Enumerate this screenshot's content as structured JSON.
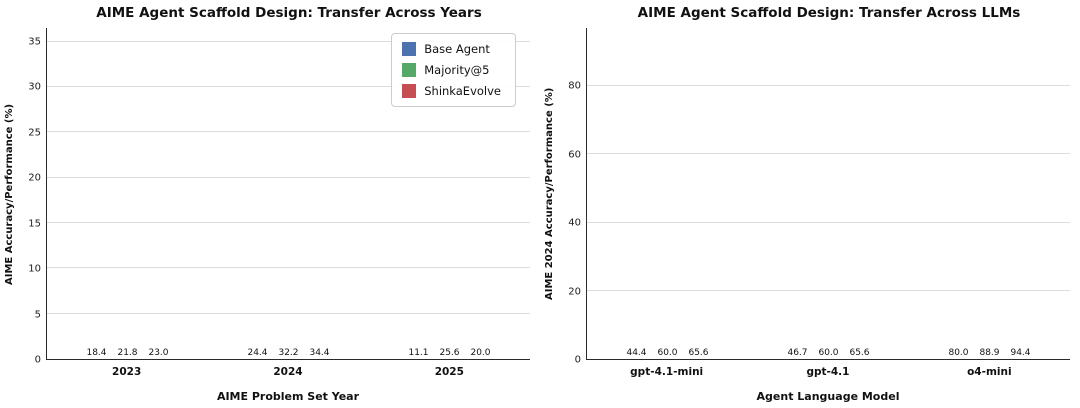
{
  "figure": {
    "background": "#ffffff",
    "grid_color": "#dcdcdc",
    "axis_color": "#2b2b2b"
  },
  "chart_data": [
    {
      "type": "bar",
      "title": "AIME Agent Scaffold Design: Transfer Across Years",
      "xlabel": "AIME Problem Set Year",
      "ylabel": "AIME Accuracy/Performance (%)",
      "categories": [
        "2023",
        "2024",
        "2025"
      ],
      "series": [
        {
          "name": "Base Agent",
          "color": "#4C72B0",
          "values": [
            18.4,
            24.4,
            11.1
          ]
        },
        {
          "name": "Majority@5",
          "color": "#55A868",
          "values": [
            21.8,
            32.2,
            25.6
          ]
        },
        {
          "name": "ShinkaEvolve",
          "color": "#C44E52",
          "values": [
            23.0,
            34.4,
            20.0
          ]
        }
      ],
      "yticks": [
        0,
        5,
        10,
        15,
        20,
        25,
        30,
        35
      ],
      "ylim": [
        0,
        36.5
      ],
      "grid": true,
      "legend": {
        "show": true,
        "position": "upper right"
      }
    },
    {
      "type": "bar",
      "title": "AIME Agent Scaffold Design: Transfer Across LLMs",
      "xlabel": "Agent Language Model",
      "ylabel": "AIME 2024 Accuracy/Performance (%)",
      "categories": [
        "gpt-4.1-mini",
        "gpt-4.1",
        "o4-mini"
      ],
      "series": [
        {
          "name": "Base Agent",
          "color": "#4C72B0",
          "values": [
            44.4,
            46.7,
            80.0
          ]
        },
        {
          "name": "Majority@5",
          "color": "#55A868",
          "values": [
            60.0,
            60.0,
            88.9
          ]
        },
        {
          "name": "ShinkaEvolve",
          "color": "#C44E52",
          "values": [
            65.6,
            65.6,
            94.4
          ]
        }
      ],
      "yticks": [
        0,
        20,
        40,
        60,
        80
      ],
      "ylim": [
        0,
        97
      ],
      "grid": true,
      "legend": {
        "show": false,
        "position": null
      }
    }
  ]
}
